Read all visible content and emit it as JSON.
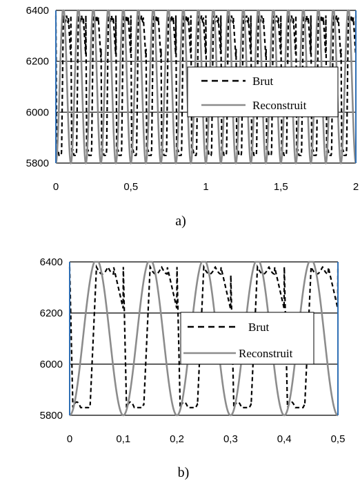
{
  "chart_data": [
    {
      "panel": "a)",
      "type": "line",
      "xlim": [
        0,
        2
      ],
      "ylim": [
        5800,
        6400
      ],
      "xticks": [
        "0",
        "0,5",
        "1",
        "1,5",
        "2"
      ],
      "yticks": [
        "5800",
        "6000",
        "6200",
        "6400"
      ],
      "grid": "horizontal",
      "legend_placement": "right",
      "series": [
        {
          "name": "Brut",
          "style": "dashed",
          "color": "#000000",
          "description_period": 0.1,
          "low": 5830,
          "high": 6380,
          "phase": 0.0
        },
        {
          "name": "Reconstruit",
          "style": "solid",
          "color": "#8c8c8c",
          "period": 0.1,
          "low": 5800,
          "high": 6410,
          "phase": 0.0
        }
      ]
    },
    {
      "panel": "b)",
      "type": "line",
      "xlim": [
        0,
        0.5
      ],
      "ylim": [
        5800,
        6400
      ],
      "xticks": [
        "0",
        "0,1",
        "0,2",
        "0,3",
        "0,4",
        "0,5"
      ],
      "yticks": [
        "5800",
        "6000",
        "6200",
        "6400"
      ],
      "grid": "horizontal",
      "legend_placement": "right",
      "series": [
        {
          "name": "Brut",
          "style": "dashed",
          "color": "#000000",
          "description_period": 0.1,
          "low": 5830,
          "high": 6380,
          "phase": 0.0
        },
        {
          "name": "Reconstruit",
          "style": "solid",
          "color": "#8c8c8c",
          "period": 0.1,
          "low": 5800,
          "high": 6410,
          "phase": 0.0
        }
      ]
    }
  ]
}
